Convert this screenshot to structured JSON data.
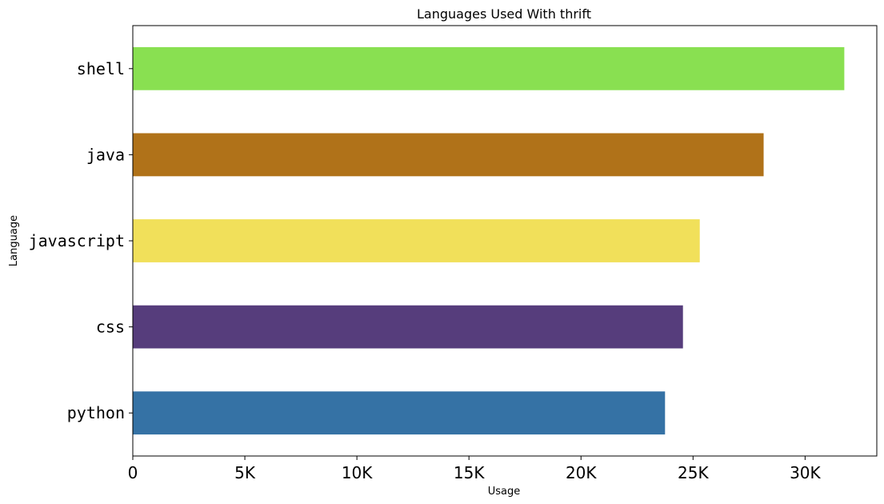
{
  "chart_data": {
    "type": "bar",
    "orientation": "horizontal",
    "title": "Languages Used With thrift",
    "xlabel": "Usage",
    "ylabel": "Language",
    "categories": [
      "python",
      "css",
      "javascript",
      "java",
      "shell"
    ],
    "values": [
      23750,
      24550,
      25300,
      28150,
      31750
    ],
    "colors": [
      "#3572A5",
      "#563d7c",
      "#f1e05a",
      "#b07219",
      "#89e051"
    ],
    "xlim": [
      0,
      33200
    ],
    "xticks": [
      0,
      5000,
      10000,
      15000,
      20000,
      25000,
      30000
    ],
    "xtick_labels": [
      "0",
      "5K",
      "10K",
      "15K",
      "20K",
      "25K",
      "30K"
    ],
    "grid": false,
    "legend": "none"
  }
}
